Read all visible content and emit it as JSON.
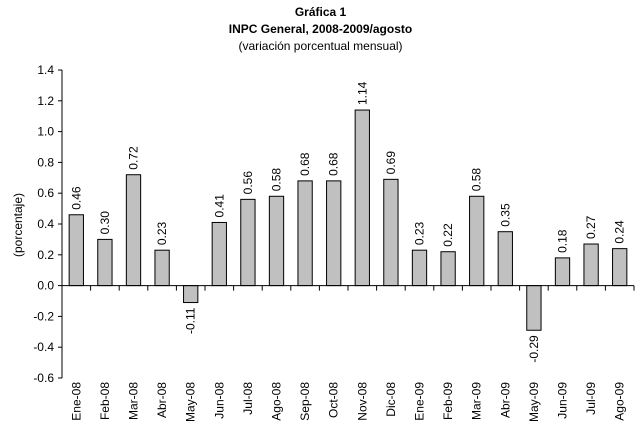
{
  "chart_data": {
    "type": "bar",
    "title": "Gráfica 1",
    "subtitle": "INPC General, 2008-2009/agosto",
    "subtitle2": "(variación porcentual mensual)",
    "xlabel": "",
    "ylabel": "(porcentaje)",
    "ylim": [
      -0.6,
      1.4
    ],
    "yticks": [
      "1.4",
      "1.2",
      "1.0",
      "0.8",
      "0.6",
      "0.4",
      "0.2",
      "0.0",
      "-0.2",
      "-0.4",
      "-0.6"
    ],
    "grid": false,
    "categories": [
      "Ene-08",
      "Feb-08",
      "Mar-08",
      "Abr-08",
      "May-08",
      "Jun-08",
      "Jul-08",
      "Ago-08",
      "Sep-08",
      "Oct-08",
      "Nov-08",
      "Dic-08",
      "Ene-09",
      "Feb-09",
      "Mar-09",
      "Abr-09",
      "May-09",
      "Jun-09",
      "Jul-09",
      "Ago-09"
    ],
    "values": [
      0.46,
      0.3,
      0.72,
      0.23,
      -0.11,
      0.41,
      0.56,
      0.58,
      0.68,
      0.68,
      1.14,
      0.69,
      0.23,
      0.22,
      0.58,
      0.35,
      -0.29,
      0.18,
      0.27,
      0.24
    ],
    "value_labels": [
      "0.46",
      "0.30",
      "0.72",
      "0.23",
      "-0.11",
      "0.41",
      "0.56",
      "0.58",
      "0.68",
      "0.68",
      "1.14",
      "0.69",
      "0.23",
      "0.22",
      "0.58",
      "0.35",
      "-0.29",
      "0.18",
      "0.27",
      "0.24"
    ],
    "bar_color": "#c0c0c0",
    "bar_edge_color": "#000000"
  }
}
